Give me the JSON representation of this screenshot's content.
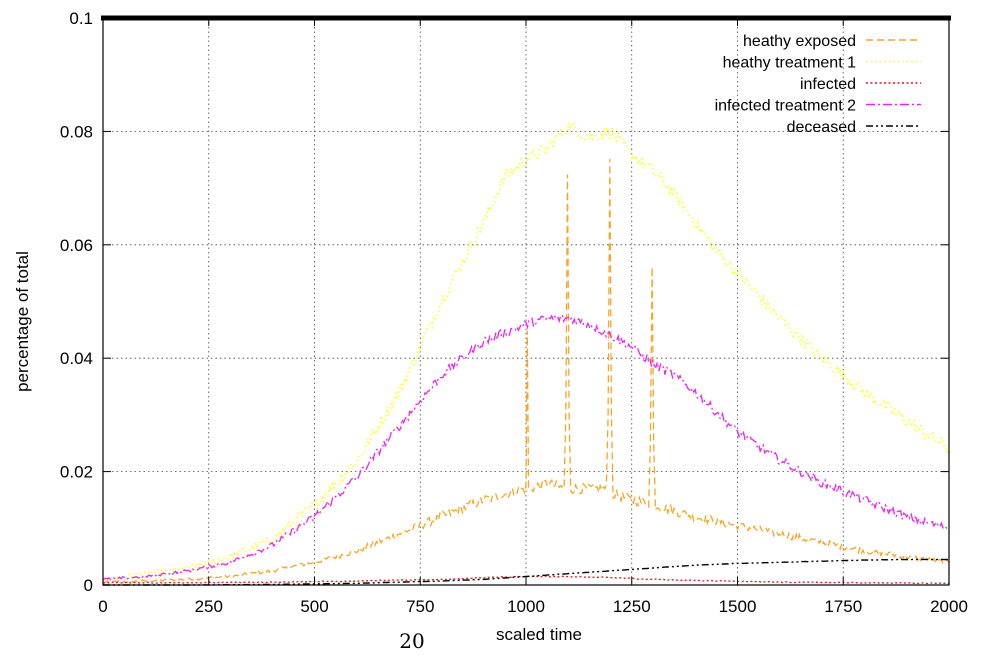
{
  "chart_data": {
    "type": "line",
    "xlabel": "scaled time",
    "ylabel": "percentage of total",
    "xlim": [
      0,
      2000
    ],
    "ylim": [
      0,
      0.1
    ],
    "xticks": [
      0,
      250,
      500,
      750,
      1000,
      1250,
      1500,
      1750,
      2000
    ],
    "yticks": [
      0,
      0.02,
      0.04,
      0.06,
      0.08,
      0.1
    ],
    "xtick_labels": [
      "0",
      "250",
      "500",
      "750",
      "1000",
      "1250",
      "1500",
      "1750",
      "2000"
    ],
    "ytick_labels": [
      "0",
      "0.02",
      "0.04",
      "0.06",
      "0.08",
      "0.1"
    ],
    "grid": true,
    "legend_position": "top-right",
    "series": [
      {
        "name": "heathy exposed",
        "color": "#f5a623",
        "dash": "dashed",
        "x": [
          0,
          100,
          200,
          300,
          400,
          500,
          600,
          700,
          800,
          900,
          1000,
          1003,
          1006,
          1010,
          1050,
          1090,
          1094,
          1098,
          1102,
          1106,
          1110,
          1150,
          1190,
          1194,
          1198,
          1202,
          1206,
          1210,
          1250,
          1290,
          1294,
          1298,
          1302,
          1306,
          1310,
          1400,
          1500,
          1600,
          1700,
          1800,
          1900,
          2000
        ],
        "y": [
          0.0005,
          0.0007,
          0.001,
          0.0015,
          0.0025,
          0.004,
          0.006,
          0.009,
          0.012,
          0.015,
          0.017,
          0.045,
          0.017,
          0.017,
          0.018,
          0.017,
          0.03,
          0.072,
          0.03,
          0.017,
          0.017,
          0.017,
          0.017,
          0.03,
          0.076,
          0.03,
          0.016,
          0.016,
          0.015,
          0.0145,
          0.025,
          0.056,
          0.025,
          0.014,
          0.014,
          0.012,
          0.0105,
          0.009,
          0.0075,
          0.006,
          0.005,
          0.004
        ]
      },
      {
        "name": "heathy treatment 1",
        "color": "#ffff33",
        "dash": "dotted",
        "x": [
          0,
          100,
          200,
          300,
          400,
          500,
          600,
          700,
          800,
          900,
          950,
          1000,
          1050,
          1100,
          1150,
          1200,
          1250,
          1300,
          1350,
          1400,
          1450,
          1500,
          1600,
          1700,
          1800,
          1900,
          2000
        ],
        "y": [
          0.001,
          0.002,
          0.003,
          0.005,
          0.008,
          0.014,
          0.022,
          0.034,
          0.05,
          0.064,
          0.072,
          0.075,
          0.077,
          0.081,
          0.079,
          0.08,
          0.076,
          0.073,
          0.069,
          0.064,
          0.059,
          0.055,
          0.047,
          0.04,
          0.034,
          0.029,
          0.024
        ]
      },
      {
        "name": "infected",
        "color": "#e8141a",
        "dash": "dotted",
        "x": [
          0,
          200,
          400,
          600,
          800,
          900,
          1000,
          1100,
          1200,
          1300,
          1400,
          1600,
          1800,
          2000
        ],
        "y": [
          0.0004,
          0.0004,
          0.0005,
          0.0007,
          0.001,
          0.0013,
          0.0015,
          0.0015,
          0.0013,
          0.001,
          0.0008,
          0.0005,
          0.0004,
          0.0003
        ]
      },
      {
        "name": "infected treatment 2",
        "color": "#ee22ee",
        "dash": "dashdot",
        "x": [
          0,
          100,
          200,
          300,
          400,
          500,
          600,
          700,
          800,
          900,
          1000,
          1050,
          1100,
          1150,
          1200,
          1250,
          1300,
          1350,
          1400,
          1500,
          1600,
          1700,
          1800,
          1900,
          2000
        ],
        "y": [
          0.001,
          0.0015,
          0.0025,
          0.004,
          0.007,
          0.012,
          0.019,
          0.028,
          0.037,
          0.043,
          0.046,
          0.047,
          0.047,
          0.046,
          0.044,
          0.042,
          0.039,
          0.037,
          0.034,
          0.027,
          0.022,
          0.018,
          0.015,
          0.012,
          0.01
        ]
      },
      {
        "name": "deceased",
        "color": "#000000",
        "dash": "dashdotdot",
        "x": [
          0,
          200,
          400,
          600,
          800,
          900,
          1000,
          1100,
          1200,
          1300,
          1400,
          1500,
          1600,
          1700,
          1800,
          1900,
          2000
        ],
        "y": [
          0,
          0,
          0.0001,
          0.0003,
          0.0007,
          0.001,
          0.0015,
          0.002,
          0.0025,
          0.003,
          0.0035,
          0.0038,
          0.004,
          0.0042,
          0.0044,
          0.0045,
          0.0045
        ]
      }
    ]
  },
  "page_number": "20"
}
